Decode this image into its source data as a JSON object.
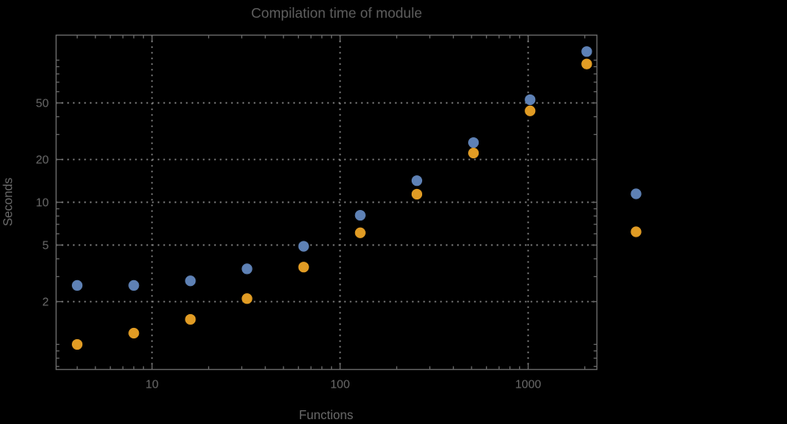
{
  "chart": {
    "title": "Compilation time of module",
    "xlabel": "Functions",
    "ylabel": "Seconds"
  },
  "chart_data": {
    "type": "scatter",
    "title": "Compilation time of module",
    "xlabel": "Functions",
    "ylabel": "Seconds",
    "x_scale": "log",
    "y_scale": "log",
    "x": [
      4,
      8,
      16,
      32,
      64,
      128,
      256,
      512,
      1024,
      2048
    ],
    "series": [
      {
        "name": "blue",
        "color": "#5e81b5",
        "values": [
          2.6,
          2.6,
          2.8,
          3.4,
          4.9,
          8.1,
          14.2,
          26.3,
          52.7,
          115
        ]
      },
      {
        "name": "orange",
        "color": "#e19c24",
        "values": [
          1.0,
          1.2,
          1.5,
          2.1,
          3.5,
          6.1,
          11.4,
          22.2,
          44,
          94
        ]
      }
    ],
    "x_ticks": [
      10,
      100,
      1000
    ],
    "x_tick_labels": [
      "10",
      "100",
      "1000"
    ],
    "y_ticks": [
      2,
      5,
      10,
      20,
      50
    ],
    "y_tick_labels": [
      "2",
      "5",
      "10",
      "20",
      "50"
    ],
    "xlim": [
      3.09,
      2320
    ],
    "ylim": [
      0.666,
      150
    ],
    "grid": {
      "style": "dotted",
      "x_values": [
        10,
        100,
        1000
      ],
      "y_values": [
        2,
        5,
        10,
        20,
        50
      ]
    },
    "legend": {
      "position": "outside-right",
      "labels_visible": false,
      "markers": [
        {
          "series": "blue",
          "color": "#5e81b5"
        },
        {
          "series": "orange",
          "color": "#e19c24"
        }
      ]
    }
  },
  "colors": {
    "background": "#000000",
    "frame": "#666666",
    "grid": "#8a8a8a",
    "tick_text": "#6a6a6a",
    "title_text": "#5e5e5e",
    "series_blue": "#5e81b5",
    "series_orange": "#e19c24"
  }
}
